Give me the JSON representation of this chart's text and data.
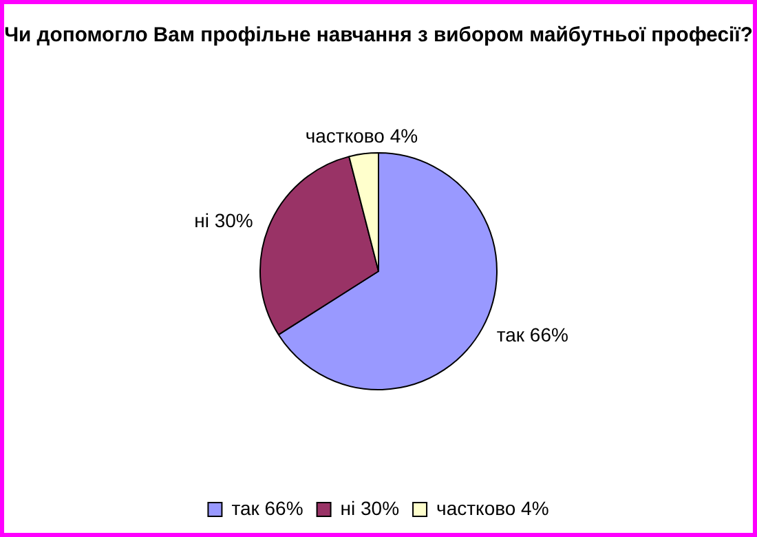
{
  "chart_data": {
    "type": "pie",
    "title": "Чи допомогло Вам профільне навчання з вибором майбутньої професії?",
    "categories": [
      "так",
      "ні",
      "частково"
    ],
    "values": [
      66,
      30,
      4
    ],
    "value_labels": [
      "66%",
      "30%",
      "4%"
    ],
    "colors": [
      "#9999ff",
      "#993366",
      "#ffffcc"
    ],
    "legend": "bottom"
  }
}
